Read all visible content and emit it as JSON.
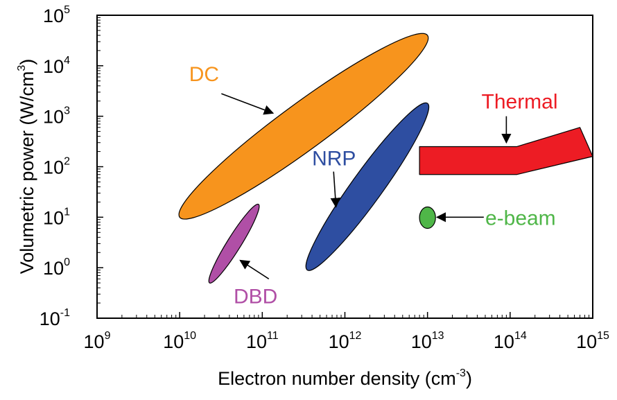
{
  "chart_data": {
    "type": "scatter",
    "title": "",
    "xlabel": "Electron number density (cm",
    "xlabel_exp": "-3",
    "xlabel_close": ")",
    "ylabel": "Volumetric power (W/cm",
    "ylabel_exp": "3",
    "ylabel_close": ")",
    "x_scale": "log",
    "y_scale": "log",
    "xlim": [
      1000000000.0,
      1000000000000000.0
    ],
    "ylim": [
      0.1,
      100000.0
    ],
    "x_tick_base": "10",
    "x_tick_exponents": [
      "9",
      "10",
      "11",
      "12",
      "13",
      "14",
      "15"
    ],
    "y_tick_base": "10",
    "y_tick_exponents": [
      "-1",
      "0",
      "1",
      "2",
      "3",
      "4",
      "5"
    ],
    "grid": false,
    "regions": [
      {
        "name": "DC",
        "label": "DC",
        "shape": "ellipse",
        "color": "#f7941d",
        "extent_x": [
          10000000000.0,
          10000000000000.0
        ],
        "extent_y": [
          10,
          40000
        ],
        "label_at": [
          13000000000.0,
          7000
        ],
        "arrow_from": [
          32000000000.0,
          2800
        ],
        "arrow_to": [
          135000000000.0,
          1150
        ]
      },
      {
        "name": "NRP",
        "label": "NRP",
        "shape": "ellipse",
        "color": "#2e4ea1",
        "extent_x": [
          350000000000.0,
          10000000000000.0
        ],
        "extent_y": [
          0.9,
          1800
        ],
        "label_at": [
          400000000000.0,
          150
        ],
        "arrow_from": [
          730000000000.0,
          80
        ],
        "arrow_to": [
          780000000000.0,
          16
        ]
      },
      {
        "name": "DBD",
        "label": "DBD",
        "shape": "ellipse",
        "color": "#b04fa6",
        "extent_x": [
          23000000000.0,
          90000000000.0
        ],
        "extent_y": [
          0.5,
          18
        ],
        "label_at": [
          45000000000.0,
          0.28
        ],
        "arrow_from": [
          120000000000.0,
          0.6
        ],
        "arrow_to": [
          54000000000.0,
          1.4
        ]
      },
      {
        "name": "Thermal",
        "label": "Thermal",
        "shape": "band",
        "color": "#ed1c24",
        "upper_edge": [
          [
            8000000000000.0,
            250
          ],
          [
            120000000000000.0,
            250
          ],
          [
            700000000000000.0,
            600
          ]
        ],
        "lower_edge": [
          [
            8000000000000.0,
            70
          ],
          [
            120000000000000.0,
            70
          ],
          [
            1000000000000000.0,
            160
          ]
        ],
        "label_at": [
          45000000000000.0,
          2000
        ],
        "arrow_from": [
          90000000000000.0,
          1000
        ],
        "arrow_to": [
          90000000000000.0,
          300
        ]
      },
      {
        "name": "e-beam",
        "label": "e-beam",
        "shape": "ellipse",
        "color": "#4fb648",
        "extent_x": [
          8000000000000.0,
          12500000000000.0
        ],
        "extent_y": [
          6,
          16
        ],
        "label_at": [
          50000000000000.0,
          10
        ],
        "arrow_from": [
          48000000000000.0,
          10
        ],
        "arrow_to": [
          13000000000000.0,
          10
        ]
      }
    ]
  }
}
